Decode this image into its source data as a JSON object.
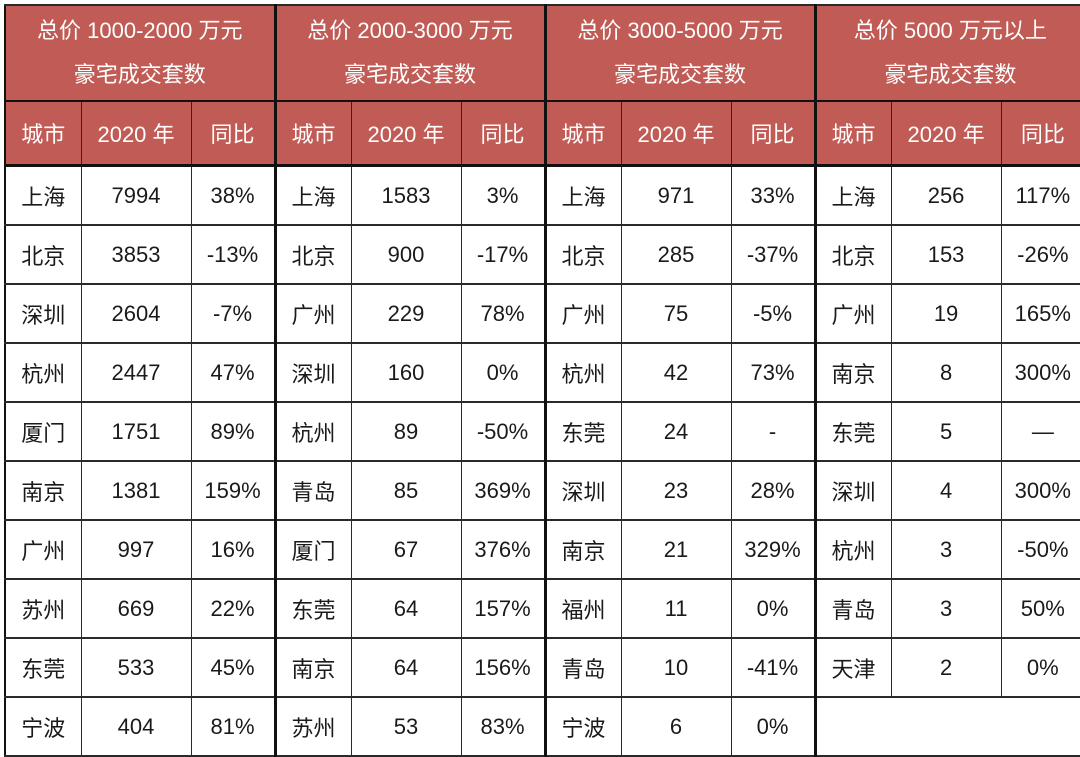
{
  "colors": {
    "header_bg": "#C15B55",
    "header_text": "#FFFFFF",
    "body_text": "#1A1A1A",
    "border": "#2A2A2A"
  },
  "chart_data": {
    "type": "table",
    "columns": [
      "城市",
      "2020 年",
      "同比"
    ],
    "groups": [
      {
        "header": [
          "总价 1000-2000 万元",
          "豪宅成交套数"
        ],
        "rows": [
          [
            "上海",
            "7994",
            "38%"
          ],
          [
            "北京",
            "3853",
            "-13%"
          ],
          [
            "深圳",
            "2604",
            "-7%"
          ],
          [
            "杭州",
            "2447",
            "47%"
          ],
          [
            "厦门",
            "1751",
            "89%"
          ],
          [
            "南京",
            "1381",
            "159%"
          ],
          [
            "广州",
            "997",
            "16%"
          ],
          [
            "苏州",
            "669",
            "22%"
          ],
          [
            "东莞",
            "533",
            "45%"
          ],
          [
            "宁波",
            "404",
            "81%"
          ]
        ]
      },
      {
        "header": [
          "总价 2000-3000 万元",
          "豪宅成交套数"
        ],
        "rows": [
          [
            "上海",
            "1583",
            "3%"
          ],
          [
            "北京",
            "900",
            "-17%"
          ],
          [
            "广州",
            "229",
            "78%"
          ],
          [
            "深圳",
            "160",
            "0%"
          ],
          [
            "杭州",
            "89",
            "-50%"
          ],
          [
            "青岛",
            "85",
            "369%"
          ],
          [
            "厦门",
            "67",
            "376%"
          ],
          [
            "东莞",
            "64",
            "157%"
          ],
          [
            "南京",
            "64",
            "156%"
          ],
          [
            "苏州",
            "53",
            "83%"
          ]
        ]
      },
      {
        "header": [
          "总价 3000-5000 万元",
          "豪宅成交套数"
        ],
        "rows": [
          [
            "上海",
            "971",
            "33%"
          ],
          [
            "北京",
            "285",
            "-37%"
          ],
          [
            "广州",
            "75",
            "-5%"
          ],
          [
            "杭州",
            "42",
            "73%"
          ],
          [
            "东莞",
            "24",
            "-"
          ],
          [
            "深圳",
            "23",
            "28%"
          ],
          [
            "南京",
            "21",
            "329%"
          ],
          [
            "福州",
            "11",
            "0%"
          ],
          [
            "青岛",
            "10",
            "-41%"
          ],
          [
            "宁波",
            "6",
            "0%"
          ]
        ]
      },
      {
        "header": [
          "总价 5000 万元以上",
          "豪宅成交套数"
        ],
        "rows": [
          [
            "上海",
            "256",
            "117%"
          ],
          [
            "北京",
            "153",
            "-26%"
          ],
          [
            "广州",
            "19",
            "165%"
          ],
          [
            "南京",
            "8",
            "300%"
          ],
          [
            "东莞",
            "5",
            "—"
          ],
          [
            "深圳",
            "4",
            "300%"
          ],
          [
            "杭州",
            "3",
            "-50%"
          ],
          [
            "青岛",
            "3",
            "50%"
          ],
          [
            "天津",
            "2",
            "0%"
          ]
        ]
      }
    ]
  }
}
